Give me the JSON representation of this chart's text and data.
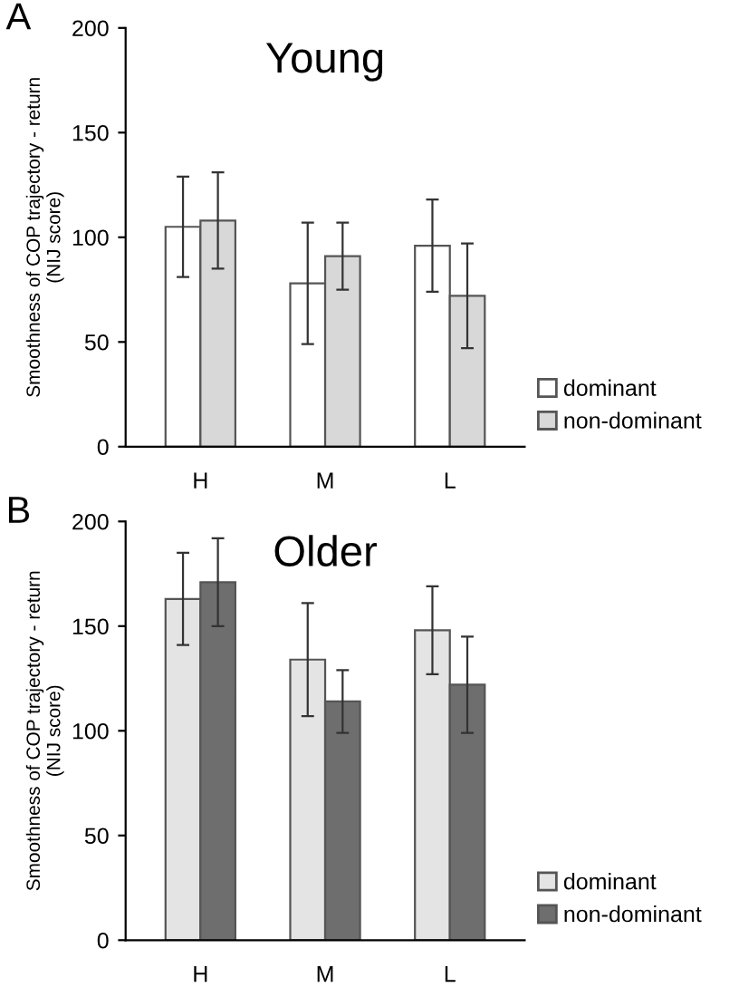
{
  "chart_data": [
    {
      "type": "bar",
      "title": "Young",
      "ylabel": "Smoothness of COP trajectory - return\n(NIJ score)",
      "categories": [
        "H",
        "M",
        "L"
      ],
      "ylim": [
        0,
        200
      ],
      "yticks": [
        0,
        50,
        100,
        150,
        200
      ],
      "legend": "bottom right",
      "annotations": [
        "A"
      ],
      "series": [
        {
          "name": "dominant",
          "color": "#ffffff",
          "values": [
            105,
            78,
            96
          ],
          "errors": [
            24,
            29,
            22
          ]
        },
        {
          "name": "non-dominant",
          "color": "#d8d8d8",
          "values": [
            108,
            91,
            72
          ],
          "errors": [
            23,
            16,
            25
          ]
        }
      ]
    },
    {
      "type": "bar",
      "title": "Older",
      "ylabel": "Smoothness of COP trajectory - return\n(NIJ score)",
      "categories": [
        "H",
        "M",
        "L"
      ],
      "ylim": [
        0,
        200
      ],
      "yticks": [
        0,
        50,
        100,
        150,
        200
      ],
      "legend": "bottom right",
      "annotations": [
        "B"
      ],
      "series": [
        {
          "name": "dominant",
          "color": "#e4e4e4",
          "values": [
            163,
            134,
            148
          ],
          "errors": [
            22,
            27,
            21
          ]
        },
        {
          "name": "non-dominant",
          "color": "#6e6e6e",
          "values": [
            171,
            114,
            122
          ],
          "errors": [
            21,
            15,
            23
          ]
        }
      ]
    }
  ]
}
